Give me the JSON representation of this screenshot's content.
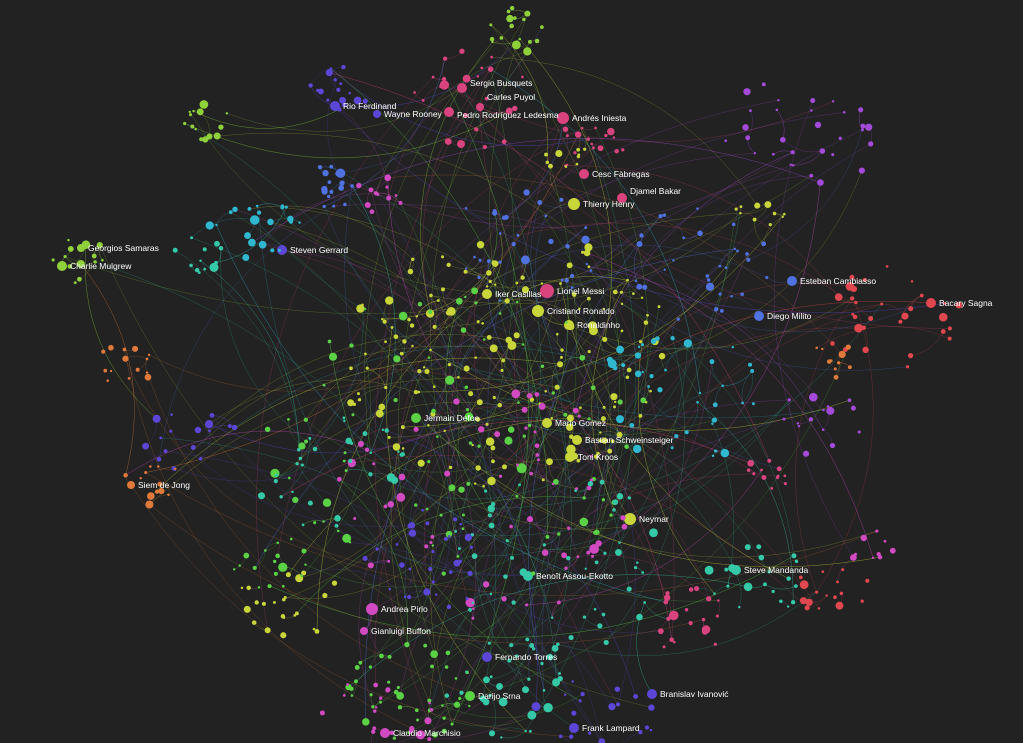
{
  "graph": {
    "background": "#222222",
    "palette": {
      "pink": "#d9447e",
      "yellow": "#c8d63a",
      "green": "#5bd145",
      "lime": "#8fd13a",
      "blue": "#4f72e0",
      "purple": "#5b46d6",
      "violet": "#a34ad9",
      "teal": "#35c9a8",
      "cyan": "#2fb8d0",
      "orange": "#e07a3a",
      "red": "#e0474f",
      "magenta": "#d24ac2"
    },
    "labeled_nodes": [
      {
        "label": "Sergio Busquets",
        "color": "pink"
      },
      {
        "label": "Carles Puyol",
        "color": "pink"
      },
      {
        "label": "Pedro Rodríguez Ledesma",
        "color": "pink"
      },
      {
        "label": "Andrés Iniesta",
        "color": "pink"
      },
      {
        "label": "Rio Ferdinand",
        "color": "purple"
      },
      {
        "label": "Wayne Rooney",
        "color": "purple"
      },
      {
        "label": "Cesc Fàbregas",
        "color": "pink"
      },
      {
        "label": "Djamel Bakar",
        "color": "pink"
      },
      {
        "label": "Thierry Henry",
        "color": "yellow"
      },
      {
        "label": "Georgios Samaras",
        "color": "lime"
      },
      {
        "label": "Charlie Mulgrew",
        "color": "lime"
      },
      {
        "label": "Steven Gerrard",
        "color": "purple"
      },
      {
        "label": "Iker Casillas",
        "color": "yellow"
      },
      {
        "label": "Lionel Messi",
        "color": "pink"
      },
      {
        "label": "Cristiano Ronaldo",
        "color": "yellow"
      },
      {
        "label": "Ronaldinho",
        "color": "yellow"
      },
      {
        "label": "Esteban Cambiasso",
        "color": "blue"
      },
      {
        "label": "Diego Milito",
        "color": "blue"
      },
      {
        "label": "Bacary Sagna",
        "color": "red"
      },
      {
        "label": "Jermain Defoe",
        "color": "green"
      },
      {
        "label": "Mario Gomez",
        "color": "yellow"
      },
      {
        "label": "Bastian Schweinsteiger",
        "color": "yellow"
      },
      {
        "label": "Toni Kroos",
        "color": "yellow"
      },
      {
        "label": "Siem de Jong",
        "color": "orange"
      },
      {
        "label": "Neymar",
        "color": "yellow"
      },
      {
        "label": "Benoît Assou-Ekotto",
        "color": "teal"
      },
      {
        "label": "Steve Mandanda",
        "color": "teal"
      },
      {
        "label": "Andrea Pirlo",
        "color": "magenta"
      },
      {
        "label": "Gianluigi Buffon",
        "color": "magenta"
      },
      {
        "label": "Fernando Torres",
        "color": "purple"
      },
      {
        "label": "Darijo Srna",
        "color": "green"
      },
      {
        "label": "Branislav Ivanović",
        "color": "purple"
      },
      {
        "label": "Frank Lampard",
        "color": "purple"
      },
      {
        "label": "Claudio Marchisio",
        "color": "magenta"
      }
    ]
  }
}
